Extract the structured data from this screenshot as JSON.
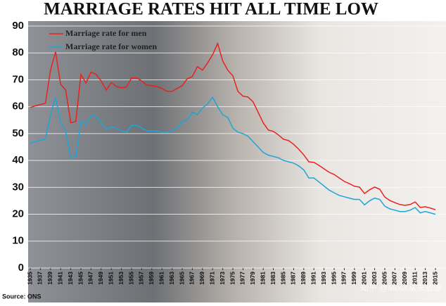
{
  "chart_data": {
    "type": "line",
    "title": "MARRIAGE RATES HIT ALL TIME LOW",
    "source": "Source: ONS",
    "watermark": "知乎 @Moss从未放逐",
    "x": [
      1935,
      1936,
      1937,
      1938,
      1939,
      1940,
      1941,
      1942,
      1943,
      1944,
      1945,
      1946,
      1947,
      1948,
      1949,
      1950,
      1951,
      1952,
      1953,
      1954,
      1955,
      1956,
      1957,
      1958,
      1959,
      1960,
      1961,
      1962,
      1963,
      1964,
      1965,
      1966,
      1967,
      1968,
      1969,
      1970,
      1971,
      1972,
      1973,
      1974,
      1975,
      1976,
      1977,
      1978,
      1979,
      1980,
      1981,
      1982,
      1983,
      1984,
      1985,
      1986,
      1987,
      1988,
      1989,
      1990,
      1991,
      1992,
      1993,
      1994,
      1995,
      1996,
      1997,
      1998,
      1999,
      2000,
      2001,
      2002,
      2003,
      2004,
      2005,
      2006,
      2007,
      2008,
      2009,
      2010,
      2011,
      2012,
      2013,
      2014,
      2015
    ],
    "series": [
      {
        "name": "Marriage rate for men",
        "color": "#e8221f",
        "values": [
          59.7,
          60.3,
          60.8,
          61.3,
          73.6,
          80.4,
          68.3,
          66.2,
          54,
          54.5,
          72,
          68.8,
          72.8,
          72,
          69.6,
          66.2,
          69,
          67.5,
          67,
          67.3,
          70.7,
          70.7,
          69.6,
          68,
          67.8,
          67.5,
          66.8,
          65.7,
          65.7,
          66.8,
          67.8,
          70.4,
          71.2,
          74.9,
          73.6,
          76.2,
          79.3,
          83.5,
          77,
          73.6,
          71.5,
          65.7,
          63.9,
          63.6,
          61.8,
          57.9,
          54,
          51.3,
          50.8,
          49.5,
          47.9,
          47.4,
          46,
          44.2,
          42.1,
          39.5,
          39.3,
          38.2,
          36.9,
          35.6,
          34.8,
          33.5,
          32.2,
          31.4,
          30.4,
          30.1,
          27.7,
          29.1,
          30.1,
          29.3,
          26.4,
          25.1,
          24.3,
          23.6,
          23.3,
          23.6,
          24.6,
          22.5,
          22.8,
          22.3,
          21.7
        ]
      },
      {
        "name": "Marriage rate for women",
        "color": "#1ea5d8",
        "values": [
          46.5,
          47,
          47.5,
          48,
          57,
          63.5,
          54,
          51,
          41,
          41.5,
          54.5,
          53.5,
          56.5,
          56.5,
          54,
          51.5,
          52.5,
          52,
          51,
          50.5,
          53,
          53,
          52,
          51,
          51,
          51,
          50.5,
          50.5,
          51,
          52,
          54.5,
          55,
          58,
          57,
          59.5,
          61,
          63.5,
          60,
          57,
          56,
          52,
          50.5,
          50,
          49,
          47,
          45,
          43,
          42,
          41.5,
          41,
          40,
          39.5,
          39,
          38,
          36.5,
          33.5,
          33.5,
          32,
          30.5,
          29,
          28,
          27,
          26.5,
          26,
          25.5,
          25.5,
          23.5,
          25,
          26,
          25.5,
          23,
          22,
          21.5,
          21,
          21,
          21.5,
          22.5,
          20.5,
          21,
          20.5,
          20
        ]
      }
    ],
    "xlim": [
      1935,
      2015
    ],
    "xticks": [
      1935,
      1937,
      1939,
      1941,
      1943,
      1945,
      1947,
      1949,
      1951,
      1953,
      1955,
      1957,
      1959,
      1961,
      1963,
      1965,
      1967,
      1969,
      1971,
      1973,
      1975,
      1977,
      1979,
      1981,
      1983,
      1985,
      1987,
      1989,
      1991,
      1993,
      1995,
      1997,
      1999,
      2001,
      2003,
      2005,
      2007,
      2009,
      2011,
      2013,
      2015
    ],
    "ylim": [
      0,
      90
    ],
    "yticks": [
      0,
      10,
      20,
      30,
      40,
      50,
      60,
      70,
      80,
      90
    ],
    "grid": true,
    "legend": "top-left"
  }
}
